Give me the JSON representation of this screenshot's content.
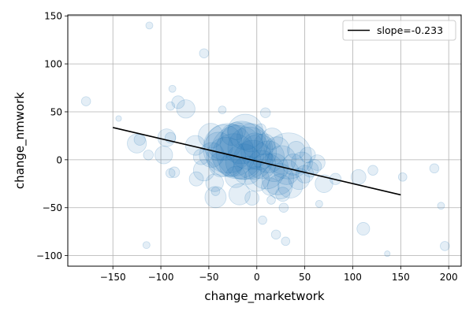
{
  "chart_data": {
    "type": "scatter",
    "xlabel": "change_marketwork",
    "ylabel": "change_nmwork",
    "xlim": [
      -197,
      213
    ],
    "ylim": [
      -111,
      151
    ],
    "xticks": [
      -150,
      -100,
      -50,
      0,
      50,
      100,
      150,
      200
    ],
    "yticks": [
      -100,
      -50,
      0,
      50,
      100,
      150
    ],
    "xtick_labels": [
      "−150",
      "−100",
      "−50",
      "0",
      "50",
      "100",
      "150",
      "200"
    ],
    "ytick_labels": [
      "−100",
      "−50",
      "0",
      "50",
      "100",
      "150"
    ],
    "grid": true,
    "legend": {
      "position": "top-right",
      "entries": [
        {
          "label": "slope=-0.233",
          "color": "#000000",
          "type": "line"
        }
      ]
    },
    "colors": {
      "points": "#1f77b4",
      "fit_line": "#000000"
    },
    "fit_line": {
      "slope": -0.233,
      "x": [
        -150,
        150
      ],
      "y": [
        33.6,
        -36.6
      ]
    },
    "points": [
      {
        "x": -112,
        "y": 140,
        "s": 1
      },
      {
        "x": -55,
        "y": 111,
        "s": 1.3
      },
      {
        "x": -178,
        "y": 61,
        "s": 1.3
      },
      {
        "x": -144,
        "y": 43,
        "s": 0.8
      },
      {
        "x": -88,
        "y": 74,
        "s": 1
      },
      {
        "x": -82,
        "y": 60,
        "s": 1.8
      },
      {
        "x": -74,
        "y": 53,
        "s": 2.6
      },
      {
        "x": -36,
        "y": 52,
        "s": 1.1
      },
      {
        "x": -90,
        "y": 56,
        "s": 1.2
      },
      {
        "x": 9,
        "y": 49,
        "s": 1.4
      },
      {
        "x": -122,
        "y": 21,
        "s": 1.6
      },
      {
        "x": -125,
        "y": 17,
        "s": 2.7
      },
      {
        "x": -113,
        "y": 5,
        "s": 1.4
      },
      {
        "x": -97,
        "y": 5,
        "s": 2.5
      },
      {
        "x": -94,
        "y": 23,
        "s": 2.5
      },
      {
        "x": -90,
        "y": 23,
        "s": 1.5
      },
      {
        "x": -90,
        "y": -14,
        "s": 1.3
      },
      {
        "x": -86,
        "y": -13,
        "s": 1.5
      },
      {
        "x": -115,
        "y": -89,
        "s": 1
      },
      {
        "x": -64,
        "y": 15,
        "s": 2.8
      },
      {
        "x": -63,
        "y": -20,
        "s": 2
      },
      {
        "x": -58,
        "y": 3,
        "s": 2.2
      },
      {
        "x": -55,
        "y": -11,
        "s": 3
      },
      {
        "x": -48,
        "y": 25,
        "s": 3.5
      },
      {
        "x": -47,
        "y": 5,
        "s": 3.5
      },
      {
        "x": -44,
        "y": -24,
        "s": 2.5
      },
      {
        "x": -43,
        "y": -33,
        "s": 1.2
      },
      {
        "x": -43,
        "y": -39,
        "s": 3
      },
      {
        "x": -40,
        "y": 14,
        "s": 4
      },
      {
        "x": -37,
        "y": -5,
        "s": 3.5
      },
      {
        "x": -34,
        "y": 18,
        "s": 5
      },
      {
        "x": -32,
        "y": 3,
        "s": 5.5
      },
      {
        "x": -30,
        "y": 12,
        "s": 7
      },
      {
        "x": -27,
        "y": -6,
        "s": 3.2
      },
      {
        "x": -26,
        "y": 26,
        "s": 3
      },
      {
        "x": -24,
        "y": 5,
        "s": 6
      },
      {
        "x": -22,
        "y": -18,
        "s": 3
      },
      {
        "x": -21,
        "y": 30,
        "s": 2.5
      },
      {
        "x": -20,
        "y": 8,
        "s": 7.5
      },
      {
        "x": -18,
        "y": -36,
        "s": 3
      },
      {
        "x": -16,
        "y": 18,
        "s": 6
      },
      {
        "x": -14,
        "y": -2,
        "s": 5
      },
      {
        "x": -13,
        "y": 9,
        "s": 8
      },
      {
        "x": -12,
        "y": 29,
        "s": 5
      },
      {
        "x": -10,
        "y": -11,
        "s": 4
      },
      {
        "x": -8,
        "y": 12,
        "s": 6
      },
      {
        "x": -6,
        "y": 23,
        "s": 4
      },
      {
        "x": -5,
        "y": -40,
        "s": 2
      },
      {
        "x": -4,
        "y": 0,
        "s": 5.5
      },
      {
        "x": -2,
        "y": 15,
        "s": 3.5
      },
      {
        "x": 0,
        "y": -20,
        "s": 3.5
      },
      {
        "x": 2,
        "y": 8,
        "s": 5
      },
      {
        "x": 4,
        "y": 32,
        "s": 1.5
      },
      {
        "x": 5,
        "y": -5,
        "s": 4
      },
      {
        "x": 6,
        "y": -63,
        "s": 1.2
      },
      {
        "x": 8,
        "y": 16,
        "s": 3
      },
      {
        "x": 10,
        "y": -12,
        "s": 5
      },
      {
        "x": 12,
        "y": 3,
        "s": 4.5
      },
      {
        "x": 14,
        "y": -28,
        "s": 2.5
      },
      {
        "x": 15,
        "y": -42,
        "s": 1.2
      },
      {
        "x": 16,
        "y": 22,
        "s": 3
      },
      {
        "x": 18,
        "y": -8,
        "s": 4
      },
      {
        "x": 20,
        "y": -78,
        "s": 1.3
      },
      {
        "x": 21,
        "y": 11,
        "s": 3.5
      },
      {
        "x": 22,
        "y": -20,
        "s": 4.5
      },
      {
        "x": 24,
        "y": -28,
        "s": 3.5
      },
      {
        "x": 26,
        "y": 0,
        "s": 4
      },
      {
        "x": 27,
        "y": -36,
        "s": 2
      },
      {
        "x": 28,
        "y": -50,
        "s": 1.3
      },
      {
        "x": 30,
        "y": -85,
        "s": 1.2
      },
      {
        "x": 31,
        "y": -13,
        "s": 3.5
      },
      {
        "x": 33,
        "y": 4,
        "s": 6.5
      },
      {
        "x": 35,
        "y": -27,
        "s": 3.5
      },
      {
        "x": 38,
        "y": -5,
        "s": 3
      },
      {
        "x": 41,
        "y": 10,
        "s": 2.5
      },
      {
        "x": 44,
        "y": -20,
        "s": 3
      },
      {
        "x": 47,
        "y": -3,
        "s": 3
      },
      {
        "x": 50,
        "y": -15,
        "s": 2.5
      },
      {
        "x": 53,
        "y": 5,
        "s": 2.2
      },
      {
        "x": 56,
        "y": -10,
        "s": 2.2
      },
      {
        "x": 60,
        "y": -7,
        "s": 2
      },
      {
        "x": 63,
        "y": -3,
        "s": 2.2
      },
      {
        "x": 65,
        "y": -46,
        "s": 1
      },
      {
        "x": 70,
        "y": -25,
        "s": 2.5
      },
      {
        "x": 82,
        "y": -20,
        "s": 1.6
      },
      {
        "x": 106,
        "y": -18,
        "s": 2.1
      },
      {
        "x": 111,
        "y": -72,
        "s": 1.8
      },
      {
        "x": 121,
        "y": -11,
        "s": 1.4
      },
      {
        "x": 136,
        "y": -98,
        "s": 0.8
      },
      {
        "x": 152,
        "y": -18,
        "s": 1.2
      },
      {
        "x": 185,
        "y": -9,
        "s": 1.3
      },
      {
        "x": 192,
        "y": -48,
        "s": 1
      },
      {
        "x": 196,
        "y": -90,
        "s": 1.3
      }
    ]
  }
}
